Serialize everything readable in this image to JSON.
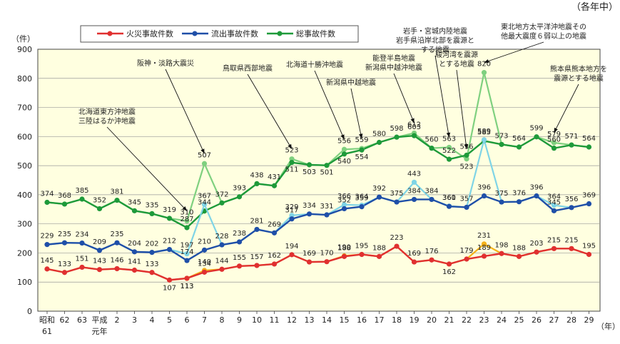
{
  "chart_data": {
    "type": "line",
    "note": "（各年中）",
    "ylabel": "（件）",
    "xunit": "（年）",
    "ylim": [
      0,
      900
    ],
    "yticks": [
      0,
      100,
      200,
      300,
      400,
      500,
      600,
      700,
      800,
      900
    ],
    "categories": [
      "昭和61",
      "62",
      "63",
      "平成元年",
      "2",
      "3",
      "4",
      "5",
      "6",
      "7",
      "8",
      "9",
      "10",
      "11",
      "12",
      "13",
      "14",
      "15",
      "16",
      "17",
      "18",
      "19",
      "20",
      "21",
      "22",
      "23",
      "24",
      "25",
      "26",
      "27",
      "28",
      "29"
    ],
    "tick_labels": [
      [
        "昭和",
        "61"
      ],
      [
        "62"
      ],
      [
        "63"
      ],
      [
        "平成",
        "元年"
      ],
      [
        "2"
      ],
      [
        "3"
      ],
      [
        "4"
      ],
      [
        "5"
      ],
      [
        "6"
      ],
      [
        "7"
      ],
      [
        "8"
      ],
      [
        "9"
      ],
      [
        "10"
      ],
      [
        "11"
      ],
      [
        "12"
      ],
      [
        "13"
      ],
      [
        "14"
      ],
      [
        "15"
      ],
      [
        "16"
      ],
      [
        "17"
      ],
      [
        "18"
      ],
      [
        "19"
      ],
      [
        "20"
      ],
      [
        "21"
      ],
      [
        "22"
      ],
      [
        "23"
      ],
      [
        "24"
      ],
      [
        "25"
      ],
      [
        "26"
      ],
      [
        "27"
      ],
      [
        "28"
      ],
      [
        "29"
      ]
    ],
    "legend": [
      "火災事故件数",
      "流出事故件数",
      "総事故件数"
    ],
    "series": [
      {
        "name": "総事故件数",
        "color": "#1e9a3a",
        "altcolor": "#7fd07f",
        "values": [
          374,
          368,
          385,
          352,
          381,
          345,
          335,
          319,
          287,
          344,
          372,
          393,
          438,
          431,
          511,
          503,
          501,
          540,
          554,
          580,
          598,
          603,
          560,
          522,
          536,
          585,
          573,
          564,
          599,
          560,
          571,
          564
        ],
        "alt": {
          "8": 310,
          "9": 507,
          "14": 523,
          "17": 556,
          "18": 559,
          "21": 612,
          "23": 563,
          "24": 523,
          "25": 820,
          "29": 579
        },
        "labels": [
          "374",
          "368",
          "385",
          "352",
          "381",
          "345",
          "335",
          "319",
          "287",
          "344",
          "372",
          "393",
          "438",
          "431",
          "511",
          "503",
          "501",
          "540",
          "554",
          "580",
          "598",
          "603",
          "560",
          "522",
          "536",
          "585",
          "573",
          "564",
          "599",
          "560",
          "571",
          "564"
        ],
        "altlabels": {
          "8": "310",
          "9": "507",
          "14": "523",
          "17": "556",
          "18": "559",
          "21": "612",
          "23": "563",
          "24": "523",
          "25": "820",
          "29": "579"
        }
      },
      {
        "name": "流出事故件数",
        "color": "#1f4fa8",
        "altcolor": "#7fd4e6",
        "values": [
          229,
          235,
          234,
          209,
          235,
          204,
          202,
          212,
          174,
          210,
          228,
          238,
          281,
          269,
          317,
          334,
          331,
          352,
          359,
          392,
          375,
          384,
          384,
          360,
          357,
          396,
          375,
          376,
          396,
          345,
          356,
          369
        ],
        "alt": {
          "8": 197,
          "9": 367,
          "14": 329,
          "17": 366,
          "18": 364,
          "21": 443,
          "23": 361,
          "25": 589,
          "29": 364
        },
        "labels": [
          "229",
          "235",
          "234",
          "209",
          "235",
          "204",
          "202",
          "212",
          "174",
          "210",
          "228",
          "238",
          "281",
          "269",
          "317",
          "334",
          "331",
          "352",
          "359",
          "392",
          "375",
          "384",
          "384",
          "360",
          "357",
          "396",
          "375",
          "376",
          "396",
          "345",
          "356",
          "369"
        ],
        "altlabels": {
          "8": "197",
          "9": "367",
          "14": "329",
          "17": "366",
          "18": "364",
          "21": "443",
          "23": "361",
          "25": "589",
          "29": "364"
        }
      },
      {
        "name": "火災事故件数",
        "color": "#e03030",
        "altcolor": "#f5b21a",
        "values": [
          145,
          133,
          151,
          143,
          146,
          141,
          133,
          107,
          113,
          134,
          144,
          155,
          157,
          162,
          194,
          169,
          170,
          188,
          195,
          188,
          223,
          169,
          176,
          162,
          179,
          189,
          198,
          188,
          203,
          215,
          215,
          195
        ],
        "alt": {
          "8": 113,
          "9": 140,
          "17": 190,
          "25": 231
        },
        "labels": [
          "145",
          "133",
          "151",
          "143",
          "146",
          "141",
          "133",
          "107",
          "113",
          "134",
          "144",
          "155",
          "157",
          "162",
          "194",
          "169",
          "170",
          "188",
          "195",
          "188",
          "223",
          "169",
          "176",
          "162",
          "179",
          "189",
          "198",
          "188",
          "203",
          "215",
          "215",
          "195"
        ],
        "altlabels": {
          "8": "113",
          "9": "140",
          "17": "190",
          "25": "231"
        }
      }
    ],
    "annotations": [
      {
        "text": [
          "北海道東方沖地震",
          "三陸はるか沖地震"
        ],
        "targets": [
          8
        ]
      },
      {
        "text": [
          "阪神・淡路大震災"
        ],
        "targets": [
          9
        ]
      },
      {
        "text": [
          "鳥取県西部地震"
        ],
        "targets": [
          14
        ]
      },
      {
        "text": [
          "北海道十勝沖地震"
        ],
        "targets": [
          17
        ]
      },
      {
        "text": [
          "新潟県中越地震"
        ],
        "targets": [
          18
        ]
      },
      {
        "text": [
          "能登半島地震",
          "新潟県中越沖地震"
        ],
        "targets": [
          21
        ]
      },
      {
        "text": [
          "岩手・宮城内陸地震",
          "岩手県沿岸北部を震源と",
          "する地震"
        ],
        "targets": [
          23
        ]
      },
      {
        "text": [
          "駿河湾を震源",
          "とする地震"
        ],
        "targets": [
          24
        ]
      },
      {
        "text": [
          "東北地方太平洋沖地震その",
          "他最大震度６弱以上の地震"
        ],
        "targets": [
          25
        ]
      },
      {
        "text": [
          "熊本県熊本地方を",
          "震源とする地震"
        ],
        "targets": [
          29
        ]
      }
    ]
  }
}
